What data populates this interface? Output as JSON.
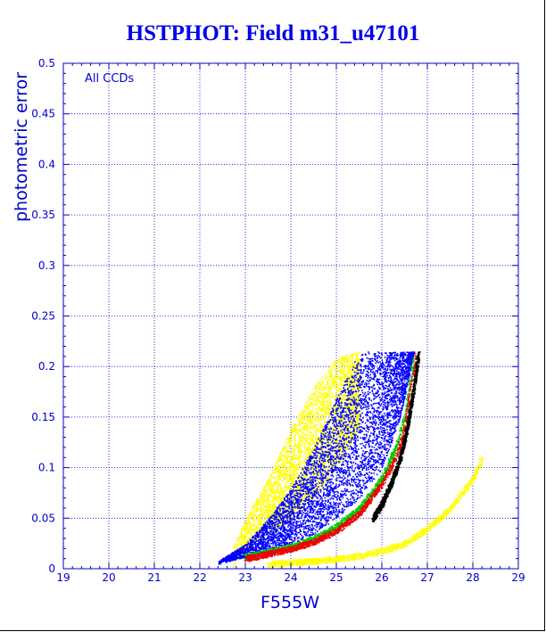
{
  "chart_data": {
    "type": "scatter",
    "title": "HSTPHOT: Field m31_u47101",
    "xlabel": "F555W",
    "ylabel": "photometric error",
    "annotation": "All CCDs",
    "xlim": [
      19,
      29
    ],
    "ylim": [
      0,
      0.5
    ],
    "xticks": [
      "19",
      "20",
      "21",
      "22",
      "23",
      "24",
      "25",
      "26",
      "27",
      "28",
      "29"
    ],
    "yticks": [
      "0",
      "0.05",
      "0.1",
      "0.15",
      "0.2",
      "0.25",
      "0.3",
      "0.35",
      "0.4",
      "0.45",
      "0.5"
    ],
    "grid": true,
    "error_cap": 0.215,
    "colors": {
      "axis": "#0000cc",
      "grid": "#0000cc",
      "title": "#0000ee",
      "yellow": "#ffff00",
      "blue": "#0000ff",
      "green": "#00cc00",
      "red": "#ee0000",
      "black": "#000000"
    },
    "series": [
      {
        "color": "yellow",
        "envelope": {
          "mag": [
            22.7,
            23.0,
            23.5,
            24.0,
            24.5,
            25.0,
            25.5
          ],
          "err_lo": [
            0.0,
            0.02,
            0.035,
            0.05,
            0.07,
            0.1,
            0.14
          ],
          "err_hi": [
            0.02,
            0.05,
            0.09,
            0.14,
            0.18,
            0.21,
            0.215
          ]
        }
      },
      {
        "color": "blue",
        "envelope": {
          "mag": [
            22.4,
            23.0,
            23.5,
            24.0,
            24.5,
            25.0,
            25.5,
            26.0,
            26.4,
            26.7
          ],
          "err_lo": [
            0.005,
            0.012,
            0.018,
            0.025,
            0.035,
            0.05,
            0.07,
            0.1,
            0.15,
            0.215
          ],
          "err_hi": [
            0.008,
            0.025,
            0.05,
            0.08,
            0.12,
            0.17,
            0.215,
            0.215,
            0.215,
            0.215
          ]
        }
      },
      {
        "color": "green",
        "sequence": {
          "mag": [
            23.0,
            24.0,
            24.5,
            25.0,
            25.5,
            26.0,
            26.3,
            26.5,
            26.6,
            26.7
          ],
          "err": [
            0.012,
            0.022,
            0.03,
            0.042,
            0.06,
            0.09,
            0.12,
            0.15,
            0.18,
            0.212
          ]
        }
      },
      {
        "color": "red",
        "sequence": {
          "mag": [
            23.0,
            24.0,
            24.5,
            25.0,
            25.5,
            26.0,
            26.3,
            26.5,
            26.6,
            26.75
          ],
          "err": [
            0.01,
            0.02,
            0.027,
            0.038,
            0.055,
            0.085,
            0.11,
            0.14,
            0.17,
            0.212
          ]
        }
      },
      {
        "color": "black",
        "sequence": {
          "mag": [
            25.8,
            26.0,
            26.2,
            26.4,
            26.55,
            26.7,
            26.8
          ],
          "err": [
            0.05,
            0.065,
            0.085,
            0.11,
            0.14,
            0.18,
            0.215
          ]
        }
      },
      {
        "color": "yellow",
        "sequence": {
          "mag": [
            23.5,
            24.5,
            25.0,
            25.5,
            26.0,
            26.5,
            27.0,
            27.5,
            28.0,
            28.2
          ],
          "err": [
            0.005,
            0.008,
            0.01,
            0.013,
            0.018,
            0.025,
            0.04,
            0.06,
            0.09,
            0.11
          ]
        }
      }
    ]
  }
}
